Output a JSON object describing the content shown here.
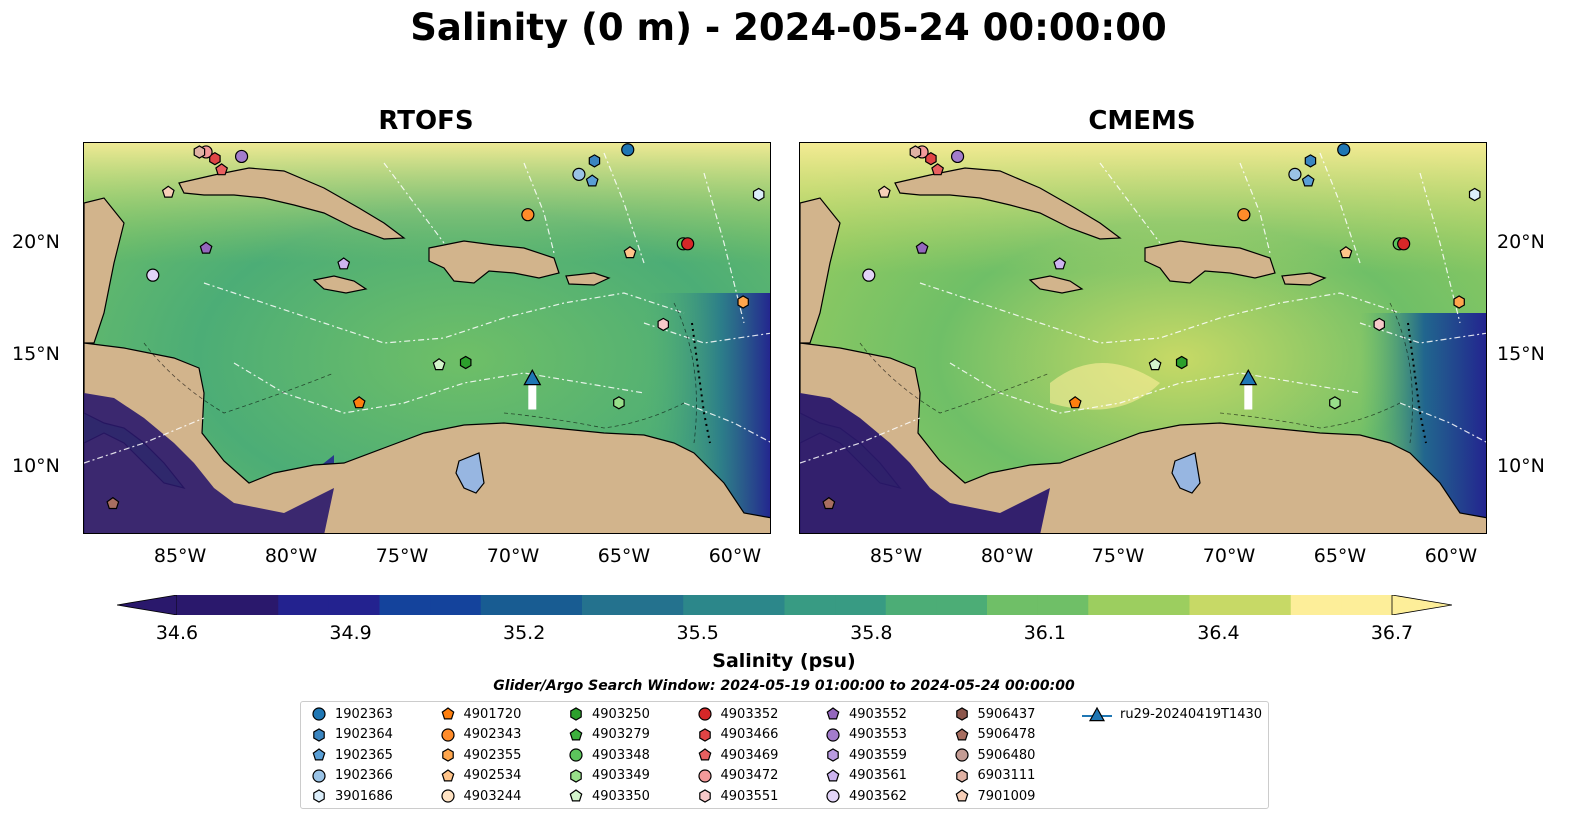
{
  "title": "Salinity (0 m) - 2024-05-24 00:00:00",
  "panels": [
    {
      "title": "RTOFS"
    },
    {
      "title": "CMEMS"
    }
  ],
  "axes": {
    "lon_ticks": [
      "85°W",
      "80°W",
      "75°W",
      "70°W",
      "65°W",
      "60°W"
    ],
    "lat_ticks": [
      "20°N",
      "15°N",
      "10°N"
    ],
    "lon_range": [
      -89.5,
      -58.5
    ],
    "lat_range": [
      7.0,
      24.5
    ]
  },
  "colorbar": {
    "label": "Salinity (psu)",
    "ticks": [
      "34.6",
      "34.9",
      "35.2",
      "35.5",
      "35.8",
      "36.1",
      "36.4",
      "36.7"
    ],
    "range": [
      34.6,
      36.7
    ],
    "extend": "both",
    "colormap": "haline",
    "colors": [
      "#2a186c",
      "#23228f",
      "#14439c",
      "#185c92",
      "#24728e",
      "#2c878a",
      "#389b83",
      "#4cad76",
      "#6fbf67",
      "#9cce5f",
      "#c7d966",
      "#fdee99"
    ]
  },
  "search_window": "Glider/Argo Search Window: 2024-05-19 01:00:00 to 2024-05-24 00:00:00",
  "colors": {
    "land": "#d2b48c",
    "lake": "#97b6e1",
    "river": "#9eb9da",
    "glider": "#1f77b4"
  },
  "legend": [
    {
      "label": "1902363",
      "marker": "circle",
      "color": "#1f77b4"
    },
    {
      "label": "1902364",
      "marker": "hexagon",
      "color": "#3a85c0"
    },
    {
      "label": "1902365",
      "marker": "pentagon",
      "color": "#5a9fd6"
    },
    {
      "label": "1902366",
      "marker": "circle",
      "color": "#9ac3e6"
    },
    {
      "label": "3901686",
      "marker": "hexagon",
      "color": "#dceefa"
    },
    {
      "label": "4901720",
      "marker": "pentagon",
      "color": "#ff7f0e"
    },
    {
      "label": "4902343",
      "marker": "circle",
      "color": "#ff8c2a"
    },
    {
      "label": "4902355",
      "marker": "hexagon",
      "color": "#ffa64d"
    },
    {
      "label": "4902534",
      "marker": "pentagon",
      "color": "#ffc48a"
    },
    {
      "label": "4903244",
      "marker": "circle",
      "color": "#ffe3c4"
    },
    {
      "label": "4903250",
      "marker": "hexagon",
      "color": "#2ca02c"
    },
    {
      "label": "4903279",
      "marker": "pentagon",
      "color": "#3db03d"
    },
    {
      "label": "4903348",
      "marker": "circle",
      "color": "#5cc45c"
    },
    {
      "label": "4903349",
      "marker": "hexagon",
      "color": "#98df8a"
    },
    {
      "label": "4903350",
      "marker": "pentagon",
      "color": "#d4f5cc"
    },
    {
      "label": "4903352",
      "marker": "circle",
      "color": "#d62728"
    },
    {
      "label": "4903466",
      "marker": "hexagon",
      "color": "#e04445"
    },
    {
      "label": "4903469",
      "marker": "pentagon",
      "color": "#e86060"
    },
    {
      "label": "4903472",
      "marker": "circle",
      "color": "#f29a9a"
    },
    {
      "label": "4903551",
      "marker": "hexagon",
      "color": "#f7c9c9"
    },
    {
      "label": "4903552",
      "marker": "pentagon",
      "color": "#9467bd"
    },
    {
      "label": "4903553",
      "marker": "circle",
      "color": "#a37ccc"
    },
    {
      "label": "4903559",
      "marker": "hexagon",
      "color": "#b99be0"
    },
    {
      "label": "4903561",
      "marker": "pentagon",
      "color": "#cdb4f0"
    },
    {
      "label": "4903562",
      "marker": "circle",
      "color": "#e2d4f7"
    },
    {
      "label": "5906437",
      "marker": "hexagon",
      "color": "#8c564b"
    },
    {
      "label": "5906478",
      "marker": "pentagon",
      "color": "#a86e60"
    },
    {
      "label": "5906480",
      "marker": "circle",
      "color": "#c49c94"
    },
    {
      "label": "6903111",
      "marker": "hexagon",
      "color": "#e0b2a4"
    },
    {
      "label": "7901009",
      "marker": "pentagon",
      "color": "#f7cfb8"
    },
    {
      "label": "ru29-20240419T1430",
      "marker": "glider",
      "color": "#1f77b4"
    }
  ],
  "floats": [
    {
      "id": "1902363",
      "lon": -65.0,
      "lat": 24.2
    },
    {
      "id": "1902364",
      "lon": -66.5,
      "lat": 23.7
    },
    {
      "id": "1902365",
      "lon": -66.6,
      "lat": 22.8
    },
    {
      "id": "1902366",
      "lon": -67.2,
      "lat": 23.1
    },
    {
      "id": "3901686",
      "lon": -59.1,
      "lat": 22.2
    },
    {
      "id": "4901720",
      "lon": -77.1,
      "lat": 12.9
    },
    {
      "id": "4902343",
      "lon": -69.5,
      "lat": 21.3
    },
    {
      "id": "4902534",
      "lon": -64.9,
      "lat": 19.6
    },
    {
      "id": "4903250",
      "lon": -72.3,
      "lat": 14.7
    },
    {
      "id": "4903348",
      "lon": -62.5,
      "lat": 20.0
    },
    {
      "id": "4903349",
      "lon": -65.4,
      "lat": 12.9
    },
    {
      "id": "4903350",
      "lon": -73.5,
      "lat": 14.6
    },
    {
      "id": "4903352",
      "lon": -62.3,
      "lat": 20.0
    },
    {
      "id": "4903466",
      "lon": -83.6,
      "lat": 23.8
    },
    {
      "id": "4903469",
      "lon": -83.3,
      "lat": 23.3
    },
    {
      "id": "4903472",
      "lon": -84.0,
      "lat": 24.1
    },
    {
      "id": "4903551",
      "lon": -63.4,
      "lat": 16.4
    },
    {
      "id": "4903552",
      "lon": -84.0,
      "lat": 19.8
    },
    {
      "id": "4903553",
      "lon": -82.4,
      "lat": 23.9
    },
    {
      "id": "4903561",
      "lon": -77.8,
      "lat": 19.1
    },
    {
      "id": "4903562",
      "lon": -86.4,
      "lat": 18.6
    },
    {
      "id": "5906478",
      "lon": -88.2,
      "lat": 8.4
    },
    {
      "id": "6903111",
      "lon": -84.3,
      "lat": 24.1
    },
    {
      "id": "7901009",
      "lon": -85.7,
      "lat": 22.3
    },
    {
      "id": "4902355",
      "lon": -59.8,
      "lat": 17.4
    }
  ],
  "glider": {
    "id": "ru29-20240419T1430",
    "track": [
      [
        -69.3,
        12.6
      ],
      [
        -69.3,
        13.3
      ],
      [
        -69.3,
        14.0
      ]
    ]
  }
}
